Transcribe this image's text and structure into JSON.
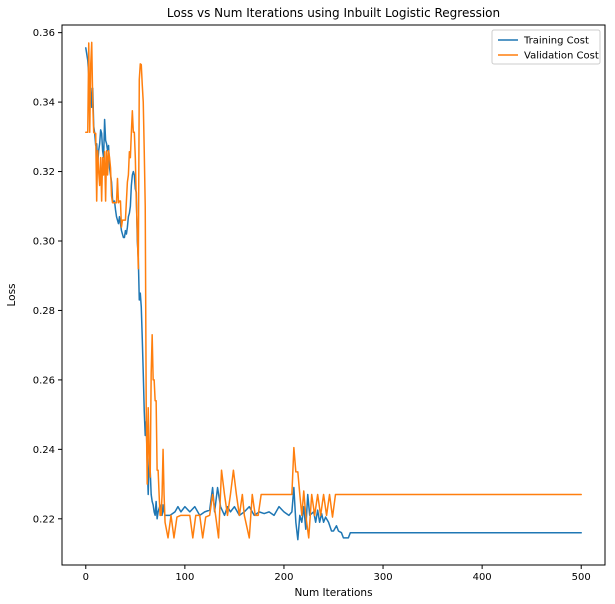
{
  "chart_data": {
    "type": "line",
    "title": "Loss vs Num Iterations using Inbuilt Logistic Regression",
    "xlabel": "Num Iterations",
    "ylabel": "Loss",
    "xlim": [
      -24,
      524
    ],
    "ylim": [
      0.2067,
      0.3622
    ],
    "xticks": [
      0,
      100,
      200,
      300,
      400,
      500
    ],
    "yticks": [
      0.22,
      0.24,
      0.26,
      0.28,
      0.3,
      0.32,
      0.34,
      0.36
    ],
    "ytick_labels": [
      "0.22",
      "0.24",
      "0.26",
      "0.28",
      "0.30",
      "0.32",
      "0.34",
      "0.36"
    ],
    "grid": false,
    "legend_position": "top-right",
    "series": [
      {
        "name": "Training Cost",
        "color": "#1f77b4",
        "points": [
          [
            0,
            0.3556
          ],
          [
            2,
            0.352
          ],
          [
            3,
            0.348
          ],
          [
            4,
            0.338
          ],
          [
            5,
            0.344
          ],
          [
            6,
            0.3385
          ],
          [
            7,
            0.344
          ],
          [
            8,
            0.333
          ],
          [
            9,
            0.331
          ],
          [
            10,
            0.3275
          ],
          [
            11,
            0.328
          ],
          [
            12,
            0.322
          ],
          [
            13,
            0.326
          ],
          [
            14,
            0.328
          ],
          [
            15,
            0.332
          ],
          [
            16,
            0.331
          ],
          [
            17,
            0.326
          ],
          [
            18,
            0.324
          ],
          [
            19,
            0.335
          ],
          [
            20,
            0.329
          ],
          [
            21,
            0.328
          ],
          [
            22,
            0.326
          ],
          [
            23,
            0.3275
          ],
          [
            24,
            0.321
          ],
          [
            25,
            0.319
          ],
          [
            26,
            0.317
          ],
          [
            27,
            0.312
          ],
          [
            28,
            0.311
          ],
          [
            29,
            0.3115
          ],
          [
            30,
            0.309
          ],
          [
            31,
            0.307
          ],
          [
            32,
            0.306
          ],
          [
            33,
            0.305
          ],
          [
            34,
            0.307
          ],
          [
            35,
            0.305
          ],
          [
            36,
            0.303
          ],
          [
            37,
            0.302
          ],
          [
            38,
            0.301
          ],
          [
            39,
            0.301
          ],
          [
            40,
            0.303
          ],
          [
            41,
            0.302
          ],
          [
            42,
            0.304
          ],
          [
            43,
            0.307
          ],
          [
            44,
            0.308
          ],
          [
            45,
            0.31
          ],
          [
            46,
            0.316
          ],
          [
            47,
            0.319
          ],
          [
            48,
            0.32
          ],
          [
            49,
            0.319
          ],
          [
            50,
            0.315
          ],
          [
            51,
            0.314
          ],
          [
            52,
            0.3
          ],
          [
            53,
            0.295
          ],
          [
            54,
            0.283
          ],
          [
            55,
            0.285
          ],
          [
            56,
            0.281
          ],
          [
            57,
            0.272
          ],
          [
            58,
            0.262
          ],
          [
            59,
            0.251
          ],
          [
            60,
            0.244
          ],
          [
            61,
            0.248
          ],
          [
            62,
            0.236
          ],
          [
            63,
            0.227
          ],
          [
            64,
            0.238
          ],
          [
            65,
            0.234
          ],
          [
            66,
            0.227
          ],
          [
            67,
            0.225
          ],
          [
            68,
            0.224
          ],
          [
            69,
            0.222
          ],
          [
            70,
            0.221
          ],
          [
            71,
            0.225
          ],
          [
            72,
            0.22
          ],
          [
            73,
            0.222
          ],
          [
            74,
            0.223
          ],
          [
            75,
            0.224
          ],
          [
            76,
            0.222
          ],
          [
            77,
            0.221
          ],
          [
            78,
            0.224
          ],
          [
            79,
            0.222
          ],
          [
            80,
            0.221
          ],
          [
            85,
            0.221
          ],
          [
            90,
            0.222
          ],
          [
            93,
            0.2235
          ],
          [
            96,
            0.222
          ],
          [
            100,
            0.2235
          ],
          [
            105,
            0.222
          ],
          [
            110,
            0.2235
          ],
          [
            115,
            0.221
          ],
          [
            120,
            0.222
          ],
          [
            125,
            0.2225
          ],
          [
            128,
            0.229
          ],
          [
            130,
            0.222
          ],
          [
            133,
            0.229
          ],
          [
            136,
            0.2235
          ],
          [
            140,
            0.221
          ],
          [
            143,
            0.2235
          ],
          [
            146,
            0.222
          ],
          [
            150,
            0.2235
          ],
          [
            155,
            0.221
          ],
          [
            160,
            0.222
          ],
          [
            165,
            0.2235
          ],
          [
            170,
            0.221
          ],
          [
            175,
            0.222
          ],
          [
            180,
            0.2215
          ],
          [
            185,
            0.222
          ],
          [
            190,
            0.221
          ],
          [
            195,
            0.2235
          ],
          [
            200,
            0.222
          ],
          [
            205,
            0.221
          ],
          [
            208,
            0.222
          ],
          [
            210,
            0.229
          ],
          [
            212,
            0.219
          ],
          [
            214,
            0.214
          ],
          [
            216,
            0.221
          ],
          [
            218,
            0.219
          ],
          [
            220,
            0.2235
          ],
          [
            222,
            0.217
          ],
          [
            224,
            0.227
          ],
          [
            226,
            0.221
          ],
          [
            228,
            0.2215
          ],
          [
            230,
            0.222
          ],
          [
            232,
            0.219
          ],
          [
            234,
            0.2225
          ],
          [
            236,
            0.219
          ],
          [
            238,
            0.2215
          ],
          [
            240,
            0.219
          ],
          [
            242,
            0.2205
          ],
          [
            245,
            0.219
          ],
          [
            248,
            0.2165
          ],
          [
            250,
            0.2165
          ],
          [
            253,
            0.218
          ],
          [
            255,
            0.2165
          ],
          [
            258,
            0.216
          ],
          [
            260,
            0.2145
          ],
          [
            263,
            0.2145
          ],
          [
            265,
            0.2145
          ],
          [
            267,
            0.216
          ],
          [
            270,
            0.216
          ],
          [
            300,
            0.216
          ],
          [
            350,
            0.216
          ],
          [
            400,
            0.216
          ],
          [
            450,
            0.216
          ],
          [
            500,
            0.216
          ]
        ]
      },
      {
        "name": "Validation Cost",
        "color": "#ff7f0e",
        "points": [
          [
            0,
            0.3313
          ],
          [
            2,
            0.3313
          ],
          [
            3,
            0.357
          ],
          [
            4,
            0.3313
          ],
          [
            5,
            0.351
          ],
          [
            6,
            0.3572
          ],
          [
            7,
            0.34
          ],
          [
            8,
            0.3313
          ],
          [
            9,
            0.331
          ],
          [
            10,
            0.331
          ],
          [
            11,
            0.3115
          ],
          [
            12,
            0.326
          ],
          [
            13,
            0.32
          ],
          [
            14,
            0.316
          ],
          [
            15,
            0.324
          ],
          [
            16,
            0.3115
          ],
          [
            17,
            0.324
          ],
          [
            18,
            0.319
          ],
          [
            19,
            0.3257
          ],
          [
            20,
            0.3115
          ],
          [
            21,
            0.326
          ],
          [
            22,
            0.319
          ],
          [
            23,
            0.326
          ],
          [
            24,
            0.324
          ],
          [
            25,
            0.321
          ],
          [
            26,
            0.313
          ],
          [
            27,
            0.311
          ],
          [
            28,
            0.311
          ],
          [
            29,
            0.311
          ],
          [
            30,
            0.311
          ],
          [
            31,
            0.311
          ],
          [
            32,
            0.318
          ],
          [
            33,
            0.311
          ],
          [
            34,
            0.3115
          ],
          [
            35,
            0.3115
          ],
          [
            36,
            0.304
          ],
          [
            37,
            0.306
          ],
          [
            38,
            0.306
          ],
          [
            39,
            0.306
          ],
          [
            40,
            0.306
          ],
          [
            41,
            0.3115
          ],
          [
            42,
            0.317
          ],
          [
            43,
            0.319
          ],
          [
            44,
            0.3257
          ],
          [
            45,
            0.324
          ],
          [
            46,
            0.3313
          ],
          [
            47,
            0.3375
          ],
          [
            48,
            0.3313
          ],
          [
            49,
            0.3313
          ],
          [
            50,
            0.324
          ],
          [
            51,
            0.311
          ],
          [
            52,
            0.303
          ],
          [
            53,
            0.292
          ],
          [
            54,
            0.3465
          ],
          [
            55,
            0.351
          ],
          [
            56,
            0.3508
          ],
          [
            57,
            0.345
          ],
          [
            58,
            0.34
          ],
          [
            59,
            0.326
          ],
          [
            60,
            0.31
          ],
          [
            61,
            0.252
          ],
          [
            62,
            0.23
          ],
          [
            63,
            0.252
          ],
          [
            64,
            0.238
          ],
          [
            65,
            0.232
          ],
          [
            66,
            0.262
          ],
          [
            67,
            0.273
          ],
          [
            68,
            0.26
          ],
          [
            69,
            0.26
          ],
          [
            70,
            0.254
          ],
          [
            71,
            0.254
          ],
          [
            72,
            0.234
          ],
          [
            73,
            0.234
          ],
          [
            74,
            0.227
          ],
          [
            75,
            0.221
          ],
          [
            76,
            0.221
          ],
          [
            77,
            0.227
          ],
          [
            78,
            0.24
          ],
          [
            79,
            0.227
          ],
          [
            80,
            0.219
          ],
          [
            83,
            0.2145
          ],
          [
            86,
            0.221
          ],
          [
            89,
            0.2145
          ],
          [
            92,
            0.2205
          ],
          [
            96,
            0.221
          ],
          [
            100,
            0.221
          ],
          [
            105,
            0.221
          ],
          [
            108,
            0.2145
          ],
          [
            111,
            0.221
          ],
          [
            115,
            0.221
          ],
          [
            118,
            0.2145
          ],
          [
            121,
            0.2205
          ],
          [
            125,
            0.221
          ],
          [
            128,
            0.227
          ],
          [
            131,
            0.221
          ],
          [
            134,
            0.2145
          ],
          [
            137,
            0.234
          ],
          [
            140,
            0.227
          ],
          [
            143,
            0.221
          ],
          [
            146,
            0.227
          ],
          [
            149,
            0.234
          ],
          [
            152,
            0.227
          ],
          [
            155,
            0.221
          ],
          [
            158,
            0.227
          ],
          [
            160,
            0.221
          ],
          [
            165,
            0.2145
          ],
          [
            168,
            0.227
          ],
          [
            171,
            0.221
          ],
          [
            174,
            0.221
          ],
          [
            177,
            0.227
          ],
          [
            180,
            0.227
          ],
          [
            185,
            0.227
          ],
          [
            190,
            0.227
          ],
          [
            195,
            0.227
          ],
          [
            200,
            0.227
          ],
          [
            205,
            0.227
          ],
          [
            208,
            0.227
          ],
          [
            210,
            0.2405
          ],
          [
            212,
            0.2335
          ],
          [
            214,
            0.2335
          ],
          [
            216,
            0.227
          ],
          [
            218,
            0.221
          ],
          [
            220,
            0.228
          ],
          [
            222,
            0.221
          ],
          [
            225,
            0.2145
          ],
          [
            228,
            0.227
          ],
          [
            231,
            0.221
          ],
          [
            234,
            0.227
          ],
          [
            237,
            0.221
          ],
          [
            240,
            0.227
          ],
          [
            243,
            0.221
          ],
          [
            246,
            0.227
          ],
          [
            249,
            0.2205
          ],
          [
            252,
            0.227
          ],
          [
            255,
            0.227
          ],
          [
            260,
            0.227
          ],
          [
            270,
            0.227
          ],
          [
            300,
            0.227
          ],
          [
            350,
            0.227
          ],
          [
            400,
            0.227
          ],
          [
            450,
            0.227
          ],
          [
            500,
            0.227
          ]
        ]
      }
    ]
  }
}
